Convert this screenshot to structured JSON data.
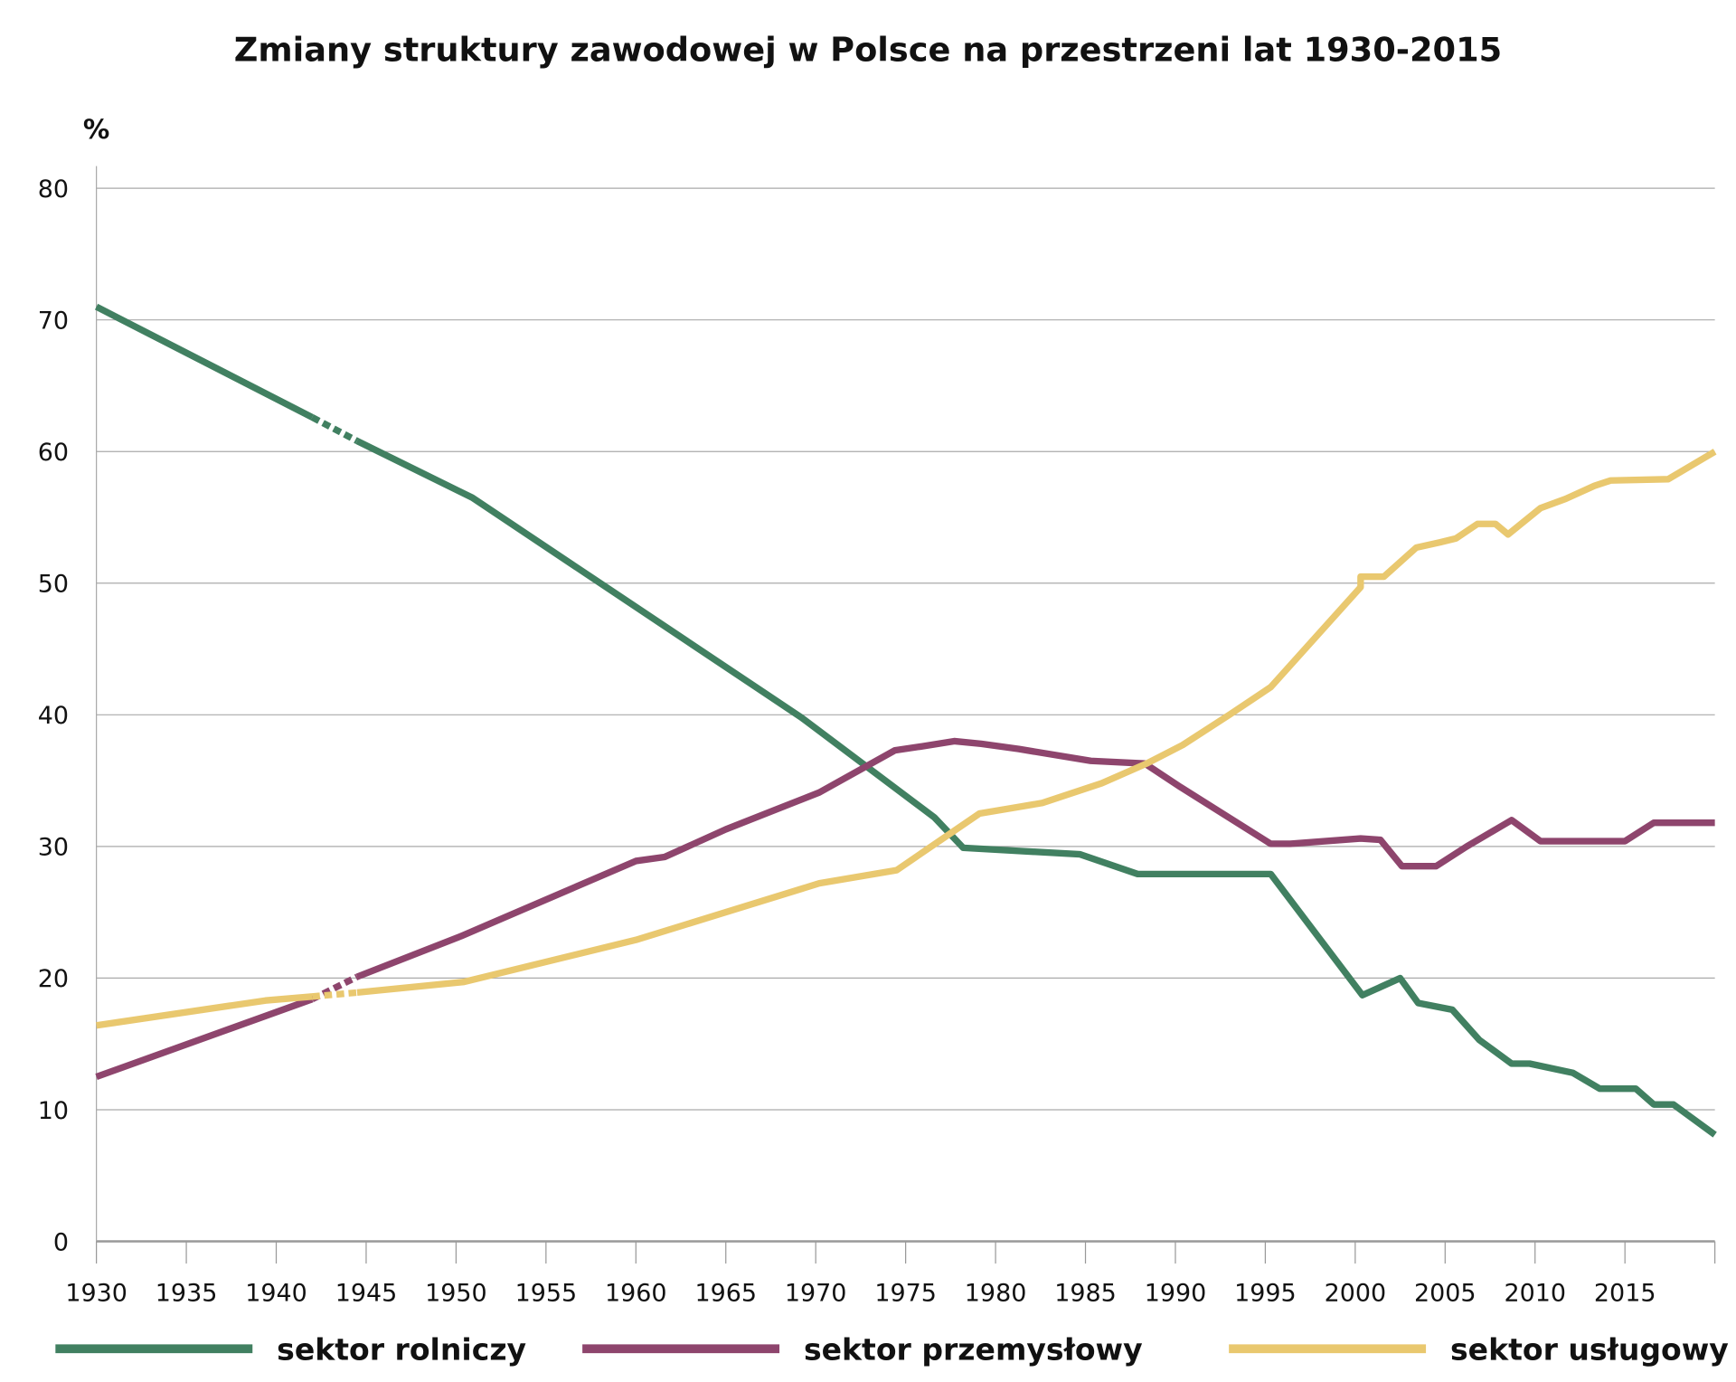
{
  "chart_data": {
    "type": "line",
    "title": "Zmiany struktury zawodowej w Polsce na przestrzeni lat 1930-2015",
    "ylabel": "%",
    "xlabel": "",
    "xlim": [
      1930,
      2020
    ],
    "ylim": [
      0,
      80
    ],
    "x_ticks": [
      "1930",
      "1935",
      "1940",
      "1945",
      "1950",
      "1955",
      "1960",
      "1965",
      "1970",
      "1975",
      "1980",
      "1985",
      "1990",
      "1995",
      "2000",
      "2005",
      "2010",
      "2015"
    ],
    "y_ticks": [
      "0",
      "10",
      "20",
      "30",
      "40",
      "50",
      "60",
      "70",
      "80"
    ],
    "grid": "horizontal",
    "legend_position": "bottom",
    "dashed_x_range": [
      1942,
      1944.5
    ],
    "series": [
      {
        "name": "sektor rolniczy",
        "color": "#418061",
        "x": [
          1930,
          1942,
          1944.5,
          1950.9,
          1969.2,
          1976.6,
          1978.2,
          1984.7,
          1987.9,
          1995.3,
          2000.4,
          2002.5,
          2003.5,
          2005.4,
          2006.9,
          2008.7,
          2009.7,
          2012.1,
          2013.6,
          2015.6,
          2016.6,
          2017.7,
          2020
        ],
        "y": [
          71,
          62.6,
          60.8,
          56.5,
          39.8,
          32.2,
          29.9,
          29.4,
          27.9,
          27.9,
          18.7,
          20,
          18.1,
          17.6,
          15.3,
          13.5,
          13.5,
          12.8,
          11.6,
          11.6,
          10.4,
          10.4,
          8.1
        ]
      },
      {
        "name": "sektor przemysłowy",
        "color": "#8e456d",
        "x": [
          1930,
          1942,
          1944.5,
          1950.3,
          1960,
          1961.6,
          1965,
          1970.2,
          1974.4,
          1975.9,
          1977.7,
          1979.2,
          1981.3,
          1985.3,
          1988.3,
          1990.3,
          1995.3,
          1996.4,
          2000.3,
          2001.4,
          2002.6,
          2004.5,
          2006.2,
          2008.7,
          2010.3,
          2015,
          2016.6,
          2020
        ],
        "y": [
          12.5,
          18.4,
          20.1,
          23.2,
          28.9,
          29.2,
          31.3,
          34.1,
          37.3,
          37.6,
          38,
          37.8,
          37.4,
          36.5,
          36.3,
          34.5,
          30.2,
          30.2,
          30.6,
          30.5,
          28.5,
          28.5,
          30,
          32,
          30.4,
          30.4,
          31.8,
          31.8
        ]
      },
      {
        "name": "sektor usługowy",
        "color": "#e9c86f",
        "x": [
          1930,
          1939.4,
          1942,
          1944.5,
          1950.4,
          1960,
          1970.2,
          1974.5,
          1979.1,
          1982.6,
          1985.9,
          1988.4,
          1990.4,
          1993,
          1995.3,
          2000.3,
          2000.3,
          2001.6,
          2003.4,
          2004.7,
          2005.6,
          2006.8,
          2007.8,
          2008.5,
          2010.3,
          2011.7,
          2013.3,
          2014.2,
          2017.4,
          2020
        ],
        "y": [
          16.4,
          18.3,
          18.6,
          18.9,
          19.7,
          22.9,
          27.2,
          28.2,
          32.5,
          33.3,
          34.8,
          36.3,
          37.7,
          40,
          42.1,
          49.7,
          50.5,
          50.5,
          52.7,
          53.1,
          53.4,
          54.5,
          54.5,
          53.7,
          55.7,
          56.4,
          57.4,
          57.8,
          57.9,
          60
        ]
      }
    ]
  }
}
